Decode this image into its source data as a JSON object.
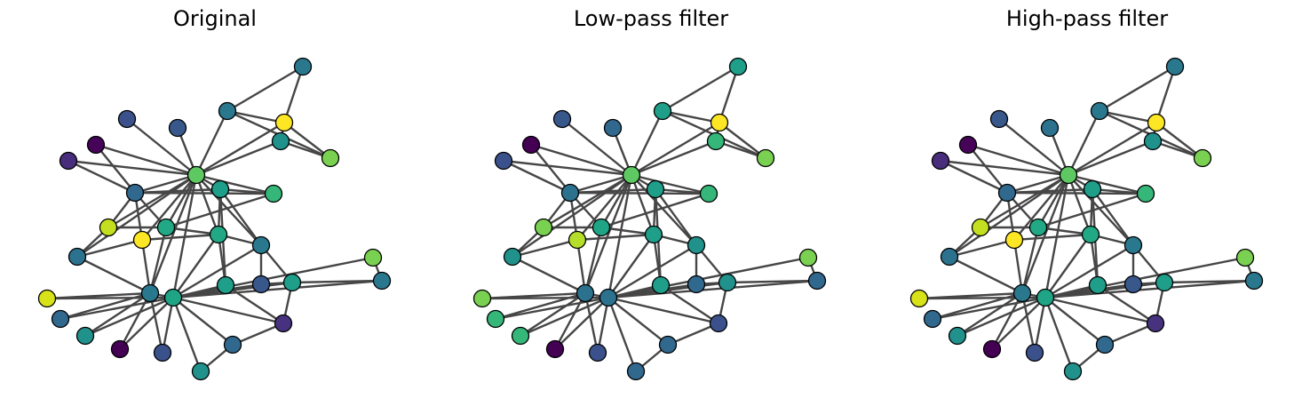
{
  "panels": [
    {
      "title": "Original",
      "node_colors": [
        "#2a788e",
        "#2a788e",
        "#fde725",
        "#38588c",
        "#3b518b",
        "#21918c",
        "#450457",
        "#472d7b",
        "#7ad151",
        "#5ec962",
        "#1f9e89",
        "#31688e",
        "#35b779",
        "#fde725",
        "#22a884",
        "#22a884",
        "#c3df20",
        "#2a788e",
        "#2c728e",
        "#1f9e89",
        "#7ad151",
        "#2a788e",
        "#38588c",
        "#1f9e89",
        "#20a486",
        "#2a788e",
        "#d8e219",
        "#31688e",
        "#21918c",
        "#440154",
        "#3b518b",
        "#21918c",
        "#31688e",
        "#46327e",
        "#440154"
      ]
    },
    {
      "title": "Low-pass filter",
      "node_colors": [
        "#1f9e89",
        "#1f9e89",
        "#fde725",
        "#31688e",
        "#38588c",
        "#35b779",
        "#440154",
        "#3b518b",
        "#7ad151",
        "#5ec962",
        "#1f9e89",
        "#2c728e",
        "#35b779",
        "#b5de2b",
        "#20a486",
        "#1f9e89",
        "#7ad151",
        "#21918c",
        "#21918c",
        "#1f9e89",
        "#7ad151",
        "#31688e",
        "#31688e",
        "#21918c",
        "#2c728e",
        "#2c728e",
        "#7ad151",
        "#35b779",
        "#35b779",
        "#440154",
        "#3b518b",
        "#31688e",
        "#31688e",
        "#3b518b",
        "#440154"
      ]
    },
    {
      "title": "High-pass filter",
      "node_colors": [
        "#2a788e",
        "#2a788e",
        "#fde725",
        "#2c728e",
        "#38588c",
        "#21918c",
        "#450457",
        "#472d7b",
        "#7ad151",
        "#5ec962",
        "#1f9e89",
        "#31688e",
        "#35b779",
        "#fde725",
        "#22a884",
        "#22a884",
        "#c3df20",
        "#2a788e",
        "#2c728e",
        "#1f9e89",
        "#7ad151",
        "#2a788e",
        "#38588c",
        "#1f9e89",
        "#20a486",
        "#2a788e",
        "#d8e219",
        "#31688e",
        "#21918c",
        "#440154",
        "#3b518b",
        "#21918c",
        "#31688e",
        "#46327e",
        "#440154"
      ]
    }
  ]
}
